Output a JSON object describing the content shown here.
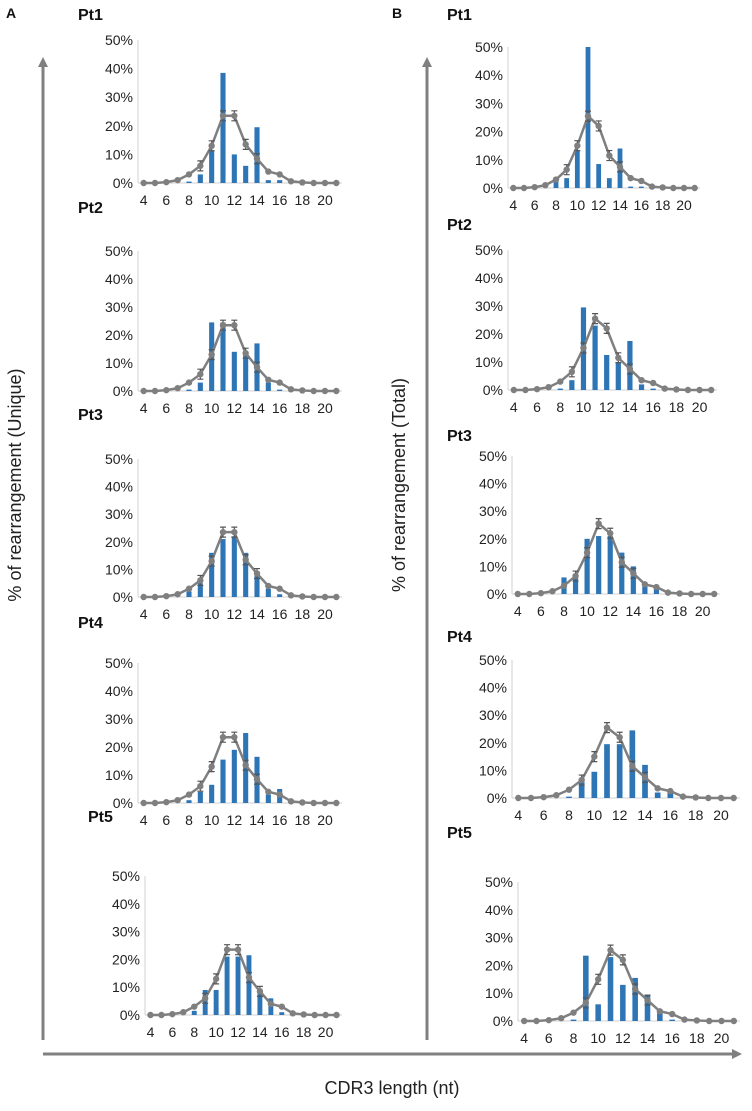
{
  "figure": {
    "panel_a_label": "A",
    "panel_b_label": "B",
    "ylabel_a": "% of rearrangement (Unique)",
    "ylabel_b": "% of rearrangement (Total)",
    "xlabel": "CDR3 length (nt)"
  },
  "colors": {
    "bar": "#2E75B6",
    "line": "#7F7F7F",
    "axis": "#808080"
  },
  "chart_data": [
    {
      "type": "bar",
      "panel": "A",
      "title": "Pt1",
      "series": [
        {
          "name": "bars",
          "x": [
            4,
            5,
            6,
            7,
            8,
            9,
            10,
            11,
            12,
            13,
            14,
            15,
            16,
            17,
            18,
            19,
            20,
            21
          ],
          "values": [
            0,
            0,
            0,
            0,
            0.5,
            3,
            11.5,
            38.5,
            10,
            6,
            19.5,
            1,
            1,
            0,
            0,
            0,
            0,
            0
          ]
        },
        {
          "name": "mean",
          "x": [
            4,
            5,
            6,
            7,
            8,
            9,
            10,
            11,
            12,
            13,
            14,
            15,
            16,
            17,
            18,
            19,
            20,
            21
          ],
          "values": [
            0,
            0,
            0.3,
            1,
            3,
            6,
            13,
            23.5,
            23.5,
            13.5,
            8.5,
            4,
            3,
            0.6,
            0.2,
            0,
            0,
            0
          ]
        }
      ],
      "yticks": [
        "0%",
        "10%",
        "20%",
        "30%",
        "40%",
        "50%"
      ],
      "xticks": [
        "4",
        "6",
        "8",
        "10",
        "12",
        "14",
        "16",
        "18",
        "20"
      ],
      "ylim": [
        0,
        50
      ]
    },
    {
      "type": "bar",
      "panel": "A",
      "title": "Pt2",
      "series": [
        {
          "name": "bars",
          "x": [
            4,
            5,
            6,
            7,
            8,
            9,
            10,
            11,
            12,
            13,
            14,
            15,
            16,
            17,
            18,
            19,
            20,
            21
          ],
          "values": [
            0,
            0,
            0,
            0,
            0.5,
            3,
            24.5,
            24.5,
            14,
            13,
            17,
            3,
            0.5,
            0,
            0,
            0,
            0,
            0
          ]
        },
        {
          "name": "mean",
          "x": [
            4,
            5,
            6,
            7,
            8,
            9,
            10,
            11,
            12,
            13,
            14,
            15,
            16,
            17,
            18,
            19,
            20,
            21
          ],
          "values": [
            0,
            0,
            0.3,
            1,
            3,
            6,
            13,
            23.5,
            23.5,
            13.5,
            8.5,
            4,
            3,
            0.6,
            0.2,
            0,
            0,
            0
          ]
        }
      ],
      "yticks": [
        "0%",
        "10%",
        "20%",
        "30%",
        "40%",
        "50%"
      ],
      "xticks": [
        "4",
        "6",
        "8",
        "10",
        "12",
        "14",
        "16",
        "18",
        "20"
      ],
      "ylim": [
        0,
        50
      ]
    },
    {
      "type": "bar",
      "panel": "A",
      "title": "Pt3",
      "series": [
        {
          "name": "bars",
          "x": [
            4,
            5,
            6,
            7,
            8,
            9,
            10,
            11,
            12,
            13,
            14,
            15,
            16,
            17,
            18,
            19,
            20,
            21
          ],
          "values": [
            0,
            0,
            0,
            0,
            2,
            5,
            16,
            21,
            22,
            16,
            8,
            3,
            1,
            0,
            0,
            0,
            0,
            0
          ]
        },
        {
          "name": "mean",
          "x": [
            4,
            5,
            6,
            7,
            8,
            9,
            10,
            11,
            12,
            13,
            14,
            15,
            16,
            17,
            18,
            19,
            20,
            21
          ],
          "values": [
            0,
            0,
            0.3,
            1,
            3,
            6,
            13,
            23.5,
            23.5,
            13.5,
            8.5,
            4,
            3,
            0.6,
            0.2,
            0,
            0,
            0
          ]
        }
      ],
      "yticks": [
        "0%",
        "10%",
        "20%",
        "30%",
        "40%",
        "50%"
      ],
      "xticks": [
        "4",
        "6",
        "8",
        "10",
        "12",
        "14",
        "16",
        "18",
        "20"
      ],
      "ylim": [
        0,
        50
      ]
    },
    {
      "type": "bar",
      "panel": "A",
      "title": "Pt4",
      "series": [
        {
          "name": "bars",
          "x": [
            4,
            5,
            6,
            7,
            8,
            9,
            10,
            11,
            12,
            13,
            14,
            15,
            16,
            17,
            18,
            19,
            20,
            21
          ],
          "values": [
            0,
            0,
            0,
            0,
            1,
            4,
            6.5,
            15.5,
            19,
            25,
            16.5,
            3,
            5,
            0,
            0,
            0,
            0,
            0
          ]
        },
        {
          "name": "mean",
          "x": [
            4,
            5,
            6,
            7,
            8,
            9,
            10,
            11,
            12,
            13,
            14,
            15,
            16,
            17,
            18,
            19,
            20,
            21
          ],
          "values": [
            0,
            0,
            0.3,
            1,
            3,
            6,
            13,
            23.5,
            23.5,
            13.5,
            8.5,
            4,
            3,
            0.6,
            0.2,
            0,
            0,
            0
          ]
        }
      ],
      "yticks": [
        "0%",
        "10%",
        "20%",
        "30%",
        "40%",
        "50%"
      ],
      "xticks": [
        "4",
        "6",
        "8",
        "10",
        "12",
        "14",
        "16",
        "18",
        "20"
      ],
      "ylim": [
        0,
        50
      ]
    },
    {
      "type": "bar",
      "panel": "A",
      "title": "Pt5",
      "series": [
        {
          "name": "bars",
          "x": [
            4,
            5,
            6,
            7,
            8,
            9,
            10,
            11,
            12,
            13,
            14,
            15,
            16,
            17,
            18,
            19,
            20,
            21
          ],
          "values": [
            0,
            0,
            0,
            0,
            1.5,
            9,
            9,
            21,
            21,
            21.5,
            9.5,
            6,
            1,
            0,
            0,
            0,
            0,
            0
          ]
        },
        {
          "name": "mean",
          "x": [
            4,
            5,
            6,
            7,
            8,
            9,
            10,
            11,
            12,
            13,
            14,
            15,
            16,
            17,
            18,
            19,
            20,
            21
          ],
          "values": [
            0,
            0,
            0.3,
            1,
            3,
            6,
            13,
            23.5,
            23.5,
            13.5,
            8.5,
            4,
            3,
            0.6,
            0.2,
            0,
            0,
            0
          ]
        }
      ],
      "yticks": [
        "0%",
        "10%",
        "20%",
        "30%",
        "40%",
        "50%"
      ],
      "xticks": [
        "4",
        "6",
        "8",
        "10",
        "12",
        "14",
        "16",
        "18",
        "20"
      ],
      "ylim": [
        0,
        50
      ]
    },
    {
      "type": "bar",
      "panel": "B",
      "title": "Pt1",
      "series": [
        {
          "name": "bars",
          "x": [
            4,
            5,
            6,
            7,
            8,
            9,
            10,
            11,
            12,
            13,
            14,
            15,
            16,
            17,
            18,
            19,
            20,
            21
          ],
          "values": [
            0,
            0,
            0,
            0,
            3,
            3.5,
            13.5,
            50,
            8.5,
            3.5,
            14,
            0.5,
            0.5,
            0,
            0,
            0,
            0,
            0
          ]
        },
        {
          "name": "mean",
          "x": [
            4,
            5,
            6,
            7,
            8,
            9,
            10,
            11,
            12,
            13,
            14,
            15,
            16,
            17,
            18,
            19,
            20,
            21
          ],
          "values": [
            0,
            0,
            0.3,
            1,
            3,
            6.5,
            15,
            25.5,
            22,
            11.5,
            7.5,
            3.5,
            2.5,
            0.5,
            0.2,
            0,
            0,
            0
          ]
        }
      ],
      "yticks": [
        "0%",
        "10%",
        "20%",
        "30%",
        "40%",
        "50%"
      ],
      "xticks": [
        "4",
        "6",
        "8",
        "10",
        "12",
        "14",
        "16",
        "18",
        "20"
      ],
      "ylim": [
        0,
        50
      ]
    },
    {
      "type": "bar",
      "panel": "B",
      "title": "Pt2",
      "series": [
        {
          "name": "bars",
          "x": [
            4,
            5,
            6,
            7,
            8,
            9,
            10,
            11,
            12,
            13,
            14,
            15,
            16,
            17,
            18,
            19,
            20,
            21
          ],
          "values": [
            0,
            0,
            0,
            0,
            0.5,
            3.5,
            29.5,
            23,
            12.5,
            10,
            17.5,
            2,
            0.5,
            0,
            0,
            0,
            0,
            0
          ]
        },
        {
          "name": "mean",
          "x": [
            4,
            5,
            6,
            7,
            8,
            9,
            10,
            11,
            12,
            13,
            14,
            15,
            16,
            17,
            18,
            19,
            20,
            21
          ],
          "values": [
            0,
            0,
            0.3,
            1,
            3,
            6.5,
            15,
            25.5,
            22,
            11.5,
            7.5,
            3.5,
            2.5,
            0.5,
            0.2,
            0,
            0,
            0
          ]
        }
      ],
      "yticks": [
        "0%",
        "10%",
        "20%",
        "30%",
        "40%",
        "50%"
      ],
      "xticks": [
        "4",
        "6",
        "8",
        "10",
        "12",
        "14",
        "16",
        "18",
        "20"
      ],
      "ylim": [
        0,
        50
      ]
    },
    {
      "type": "bar",
      "panel": "B",
      "title": "Pt3",
      "series": [
        {
          "name": "bars",
          "x": [
            4,
            5,
            6,
            7,
            8,
            9,
            10,
            11,
            12,
            13,
            14,
            15,
            16,
            17,
            18,
            19,
            20,
            21
          ],
          "values": [
            0,
            0,
            0,
            0,
            6,
            6,
            20,
            21,
            21,
            15,
            10,
            3,
            2,
            0,
            0,
            0,
            0,
            0
          ]
        },
        {
          "name": "mean",
          "x": [
            4,
            5,
            6,
            7,
            8,
            9,
            10,
            11,
            12,
            13,
            14,
            15,
            16,
            17,
            18,
            19,
            20,
            21
          ],
          "values": [
            0,
            0,
            0.3,
            1,
            3,
            6.5,
            15,
            25.5,
            22,
            11.5,
            7.5,
            3.5,
            2.5,
            0.5,
            0.2,
            0,
            0,
            0
          ]
        }
      ],
      "yticks": [
        "0%",
        "10%",
        "20%",
        "30%",
        "40%",
        "50%"
      ],
      "xticks": [
        "4",
        "6",
        "8",
        "10",
        "12",
        "14",
        "16",
        "18",
        "20"
      ],
      "ylim": [
        0,
        50
      ]
    },
    {
      "type": "bar",
      "panel": "B",
      "title": "Pt4",
      "series": [
        {
          "name": "bars",
          "x": [
            4,
            5,
            6,
            7,
            8,
            9,
            10,
            11,
            12,
            13,
            14,
            15,
            16,
            17,
            18,
            19,
            20,
            21
          ],
          "values": [
            0,
            0,
            0,
            0,
            0.5,
            6,
            9.5,
            19.5,
            19.5,
            24.5,
            12,
            2,
            2,
            0,
            0,
            0,
            0,
            0
          ]
        },
        {
          "name": "mean",
          "x": [
            4,
            5,
            6,
            7,
            8,
            9,
            10,
            11,
            12,
            13,
            14,
            15,
            16,
            17,
            18,
            19,
            20,
            21
          ],
          "values": [
            0,
            0,
            0.3,
            1,
            3,
            6.5,
            15,
            25.5,
            22,
            11.5,
            7.5,
            3.5,
            2.5,
            0.5,
            0.2,
            0,
            0,
            0
          ]
        }
      ],
      "yticks": [
        "0%",
        "10%",
        "20%",
        "30%",
        "40%",
        "50%"
      ],
      "xticks": [
        "4",
        "6",
        "8",
        "10",
        "12",
        "14",
        "16",
        "18",
        "20"
      ],
      "ylim": [
        0,
        50
      ]
    },
    {
      "type": "bar",
      "panel": "B",
      "title": "Pt5",
      "series": [
        {
          "name": "bars",
          "x": [
            4,
            5,
            6,
            7,
            8,
            9,
            10,
            11,
            12,
            13,
            14,
            15,
            16,
            17,
            18,
            19,
            20,
            21
          ],
          "values": [
            0,
            0,
            0,
            0,
            0.5,
            23.5,
            6,
            23,
            13,
            15.5,
            9.5,
            3.5,
            0.5,
            0,
            0,
            0,
            0,
            0
          ]
        },
        {
          "name": "mean",
          "x": [
            4,
            5,
            6,
            7,
            8,
            9,
            10,
            11,
            12,
            13,
            14,
            15,
            16,
            17,
            18,
            19,
            20,
            21
          ],
          "values": [
            0,
            0,
            0.3,
            1,
            3,
            6.5,
            15,
            25.5,
            22,
            11.5,
            7.5,
            3.5,
            2.5,
            0.5,
            0.2,
            0,
            0,
            0
          ]
        }
      ],
      "yticks": [
        "0%",
        "10%",
        "20%",
        "30%",
        "40%",
        "50%"
      ],
      "xticks": [
        "4",
        "6",
        "8",
        "10",
        "12",
        "14",
        "16",
        "18",
        "20"
      ],
      "ylim": [
        0,
        50
      ]
    }
  ]
}
